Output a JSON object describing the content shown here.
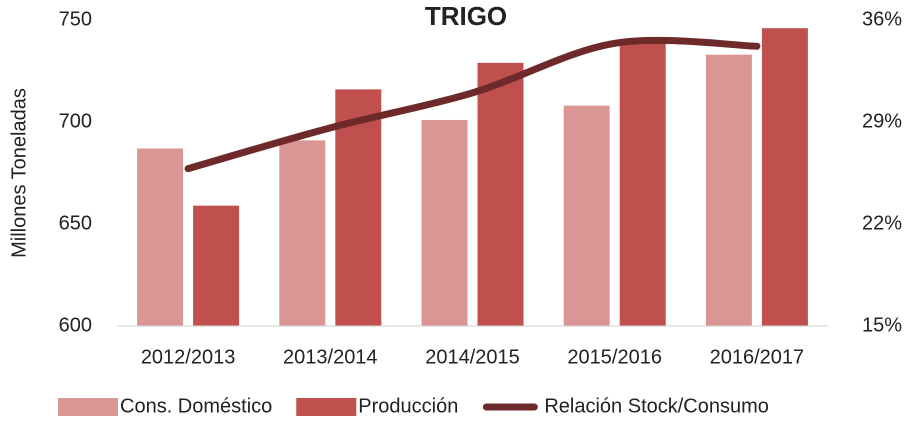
{
  "chart_data": {
    "type": "bar-line",
    "title": "TRIGO",
    "y_label": "Millones Toneladas",
    "categories": [
      "2012/2013",
      "2013/2014",
      "2014/2015",
      "2015/2016",
      "2016/2017"
    ],
    "series": [
      {
        "name": "Cons. Doméstico",
        "color": "#d99694",
        "values": [
          687,
          691,
          701,
          708,
          733
        ]
      },
      {
        "name": "Producción",
        "color": "#c0504d",
        "values": [
          659,
          716,
          729,
          740,
          746
        ]
      },
      {
        "name": "Relación Stock/Consumo",
        "color": "#6e2a2a",
        "axis": "y2",
        "type": "line",
        "values": [
          25.8,
          28.6,
          31.0,
          34.4,
          34.2
        ]
      }
    ],
    "ylim": [
      600,
      750
    ],
    "yticks": [
      600,
      650,
      700,
      750
    ],
    "y2lim": [
      15,
      36
    ],
    "y2ticks": [
      {
        "value": 15,
        "label": "15%"
      },
      {
        "value": 22,
        "label": "22%"
      },
      {
        "value": 29,
        "label": "29%"
      },
      {
        "value": 36,
        "label": "36%"
      }
    ],
    "legend": "bottom"
  }
}
